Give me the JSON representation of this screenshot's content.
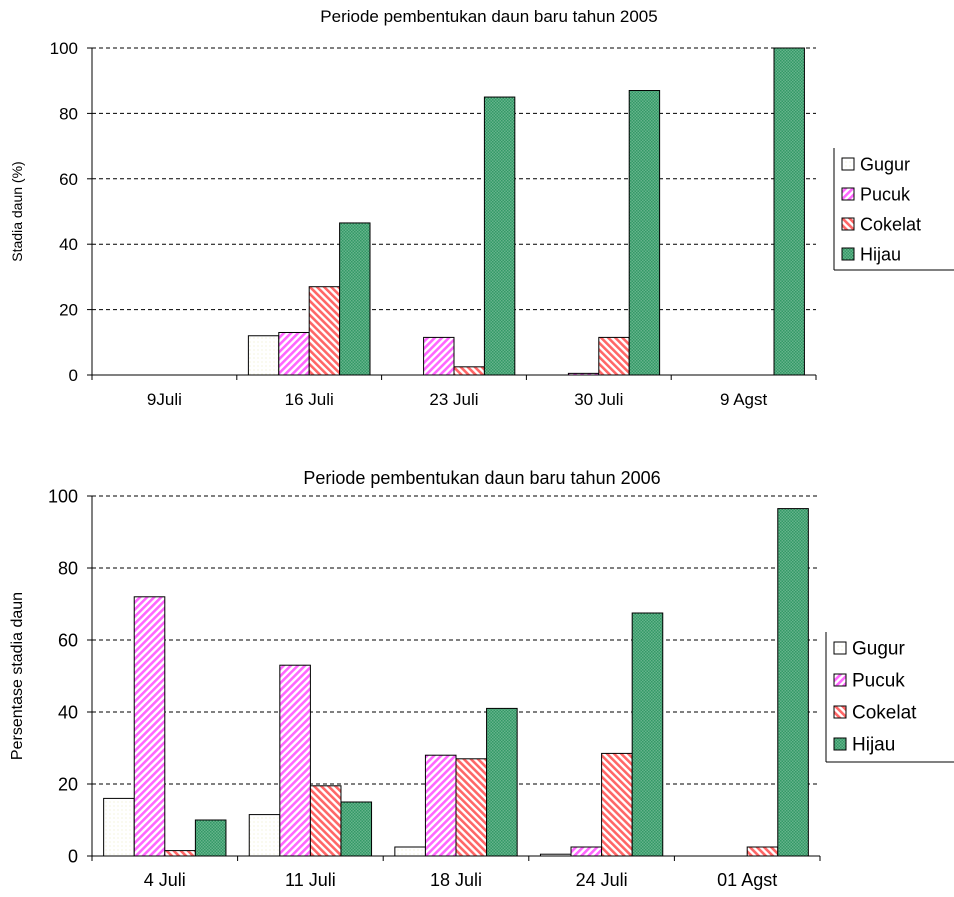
{
  "chart_data": [
    {
      "type": "bar",
      "title": "Periode pembentukan daun baru tahun 2005",
      "ylabel": "Stadia daun (%)",
      "xlabel": "",
      "ylim": [
        0,
        100
      ],
      "yticks": [
        "0",
        "20",
        "40",
        "60",
        "80",
        "100"
      ],
      "grid": "horizontal-dashed",
      "legend": "right",
      "categories": [
        "9Juli",
        "16  Juli",
        "23 Juli",
        "30 Juli",
        "9 Agst"
      ],
      "series": [
        {
          "name": "Gugur",
          "values": [
            0,
            12,
            0,
            0,
            0
          ],
          "color": "#ffffff",
          "pattern": "dots"
        },
        {
          "name": "Pucuk",
          "values": [
            0,
            13,
            11.5,
            0.5,
            0
          ],
          "color": "#ff66ff",
          "pattern": "diagonal-up"
        },
        {
          "name": "Cokelat",
          "values": [
            0,
            27,
            2.5,
            11.5,
            0
          ],
          "color": "#ff6666",
          "pattern": "diagonal-down"
        },
        {
          "name": "Hijau",
          "values": [
            0,
            46.5,
            85,
            87,
            100
          ],
          "color": "#339966",
          "pattern": "crosshatch"
        }
      ]
    },
    {
      "type": "bar",
      "title": "Periode pembentukan daun baru tahun 2006",
      "ylabel": "Persentase stadia daun",
      "xlabel": "",
      "ylim": [
        0,
        100
      ],
      "yticks": [
        "0",
        "20",
        "40",
        "60",
        "80",
        "100"
      ],
      "grid": "horizontal-dashed",
      "legend": "right",
      "categories": [
        "4 Juli",
        "11 Juli",
        "18 Juli",
        "24 Juli",
        "01 Agst"
      ],
      "series": [
        {
          "name": "Gugur",
          "values": [
            16,
            11.5,
            2.5,
            0.5,
            0
          ],
          "color": "#ffffff",
          "pattern": "dots"
        },
        {
          "name": "Pucuk",
          "values": [
            72,
            53,
            28,
            2.5,
            0
          ],
          "color": "#ff66ff",
          "pattern": "diagonal-up"
        },
        {
          "name": "Cokelat",
          "values": [
            1.5,
            19.5,
            27,
            28.5,
            2.5
          ],
          "color": "#ff6666",
          "pattern": "diagonal-down"
        },
        {
          "name": "Hijau",
          "values": [
            10,
            15,
            41,
            67.5,
            96.5
          ],
          "color": "#339966",
          "pattern": "crosshatch"
        }
      ]
    }
  ]
}
